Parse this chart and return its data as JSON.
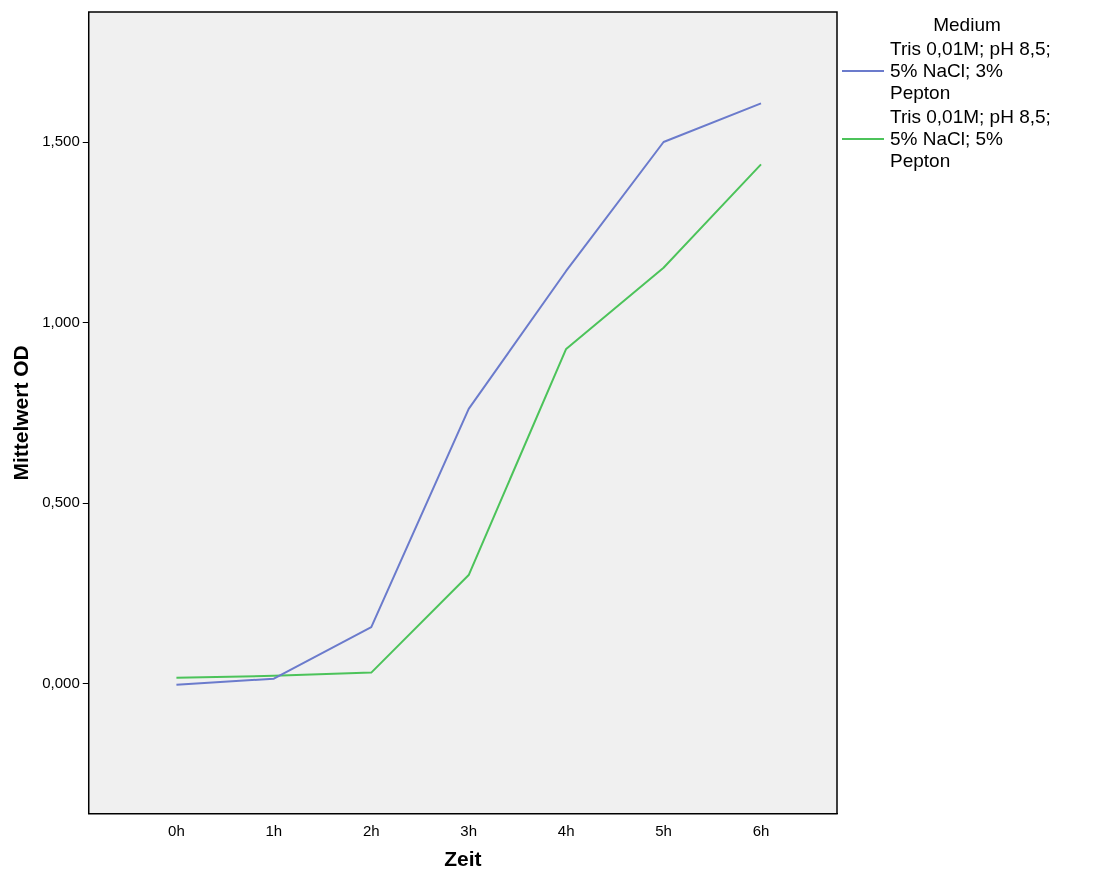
{
  "chart_data": {
    "type": "line",
    "xlabel": "Zeit",
    "ylabel": "Mittelwert OD",
    "legend_title": "Medium",
    "legend": "right",
    "grid": false,
    "marker": "none",
    "line_style": "solid",
    "categories": [
      "0h",
      "1h",
      "2h",
      "3h",
      "4h",
      "5h",
      "6h"
    ],
    "ylim": [
      -0.36,
      1.86
    ],
    "yticks": [
      {
        "value": 0,
        "label": "0,000"
      },
      {
        "value": 0.5,
        "label": "0,500"
      },
      {
        "value": 1,
        "label": "1,000"
      },
      {
        "value": 1.5,
        "label": "1,500"
      }
    ],
    "series": [
      {
        "name": "Tris 0,01M; pH 8,5; 5% NaCl; 3% Pepton",
        "color": "#6b7bcc",
        "values": [
          -0.003,
          0.014,
          0.157,
          0.761,
          1.143,
          1.5,
          1.607
        ]
      },
      {
        "name": "Tris 0,01M; pH 8,5; 5% NaCl; 5% Pepton",
        "color": "#4cc35a",
        "values": [
          0.017,
          0.022,
          0.031,
          0.301,
          0.927,
          1.152,
          1.438
        ]
      }
    ]
  }
}
